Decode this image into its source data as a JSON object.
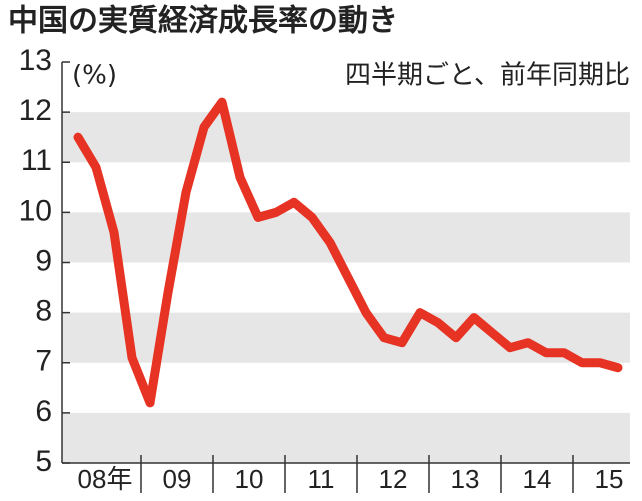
{
  "chart_data": {
    "type": "line",
    "title": "中国の実質経済成長率の動き",
    "y_unit": "(%)",
    "subtitle": "四半期ごと、前年同期比",
    "categories": [
      null,
      "08年",
      null,
      null,
      null,
      "09",
      null,
      null,
      null,
      "10",
      null,
      null,
      null,
      "11",
      null,
      null,
      null,
      "12",
      null,
      null,
      null,
      "13",
      null,
      null,
      null,
      "14",
      null,
      null,
      null,
      "15",
      null
    ],
    "series": [
      {
        "name": "実質経済成長率",
        "color": "#e63323",
        "values": [
          11.5,
          10.9,
          9.6,
          7.1,
          6.2,
          8.4,
          10.4,
          11.7,
          12.2,
          10.7,
          9.9,
          10.0,
          10.2,
          9.9,
          9.4,
          8.7,
          8.0,
          7.5,
          7.4,
          8.0,
          7.8,
          7.5,
          7.9,
          7.6,
          7.3,
          7.4,
          7.2,
          7.2,
          7.0,
          7.0,
          6.9
        ]
      }
    ],
    "ylim": [
      5,
      13
    ],
    "yticks": [
      5,
      6,
      7,
      8,
      9,
      10,
      11,
      12,
      13
    ],
    "bands": true
  }
}
